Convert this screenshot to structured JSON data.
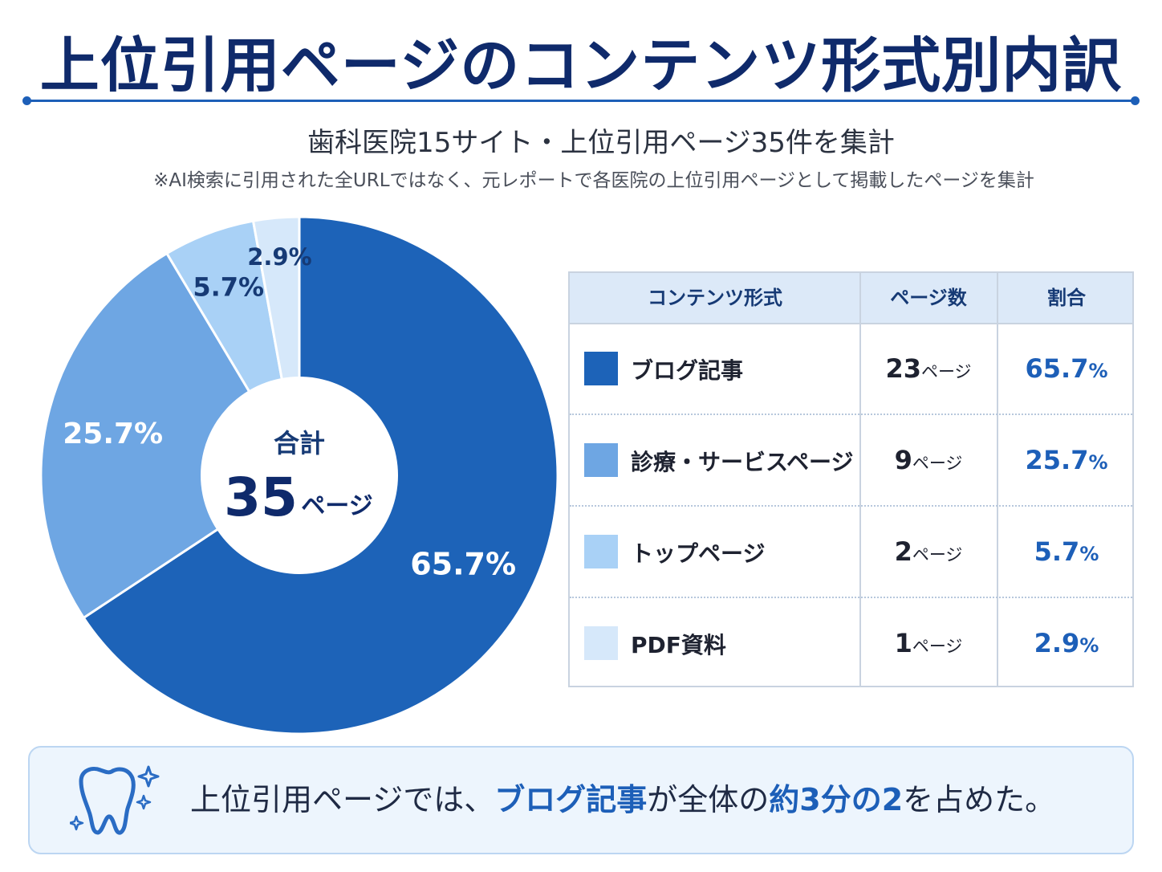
{
  "title": "上位引用ページのコンテンツ形式別内訳",
  "subtitle": "歯科医院15サイト・上位引用ページ35件を集計",
  "note": "※AI検索に引用された全URLではなく、元レポートで各医院の上位引用ページとして掲載したページを集計",
  "center": {
    "label": "合計",
    "value": "35",
    "unit": "ページ"
  },
  "table": {
    "headers": [
      "コンテンツ形式",
      "ページ数",
      "割合"
    ],
    "rows": [
      {
        "name": "ブログ記事",
        "pages": "23",
        "pages_unit": "ページ",
        "pct": "65.7",
        "pct_unit": "%"
      },
      {
        "name": "診療・サービスページ",
        "pages": "9",
        "pages_unit": "ページ",
        "pct": "25.7",
        "pct_unit": "%"
      },
      {
        "name": "トップページ",
        "pages": "2",
        "pages_unit": "ページ",
        "pct": "5.7",
        "pct_unit": "%"
      },
      {
        "name": "PDF資料",
        "pages": "1",
        "pages_unit": "ページ",
        "pct": "2.9",
        "pct_unit": "%"
      }
    ]
  },
  "callout": {
    "t1": "上位引用ページでは、",
    "t2": "ブログ記事",
    "t3": "が全体の",
    "t4": "約3分の2",
    "t5": "を占めた。"
  },
  "chart_data": {
    "type": "pie",
    "total": 35,
    "categories": [
      "ブログ記事",
      "診療・サービスページ",
      "トップページ",
      "PDF資料"
    ],
    "values": [
      23,
      9,
      2,
      1
    ],
    "labels": [
      "65.7%",
      "25.7%",
      "5.7%",
      "2.9%"
    ],
    "colors": [
      "#1d63b8",
      "#6ea6e3",
      "#a9d1f6",
      "#d6e8fa"
    ],
    "label_colors": [
      "#ffffff",
      "#ffffff",
      "#163a75",
      "#163a75"
    ]
  }
}
